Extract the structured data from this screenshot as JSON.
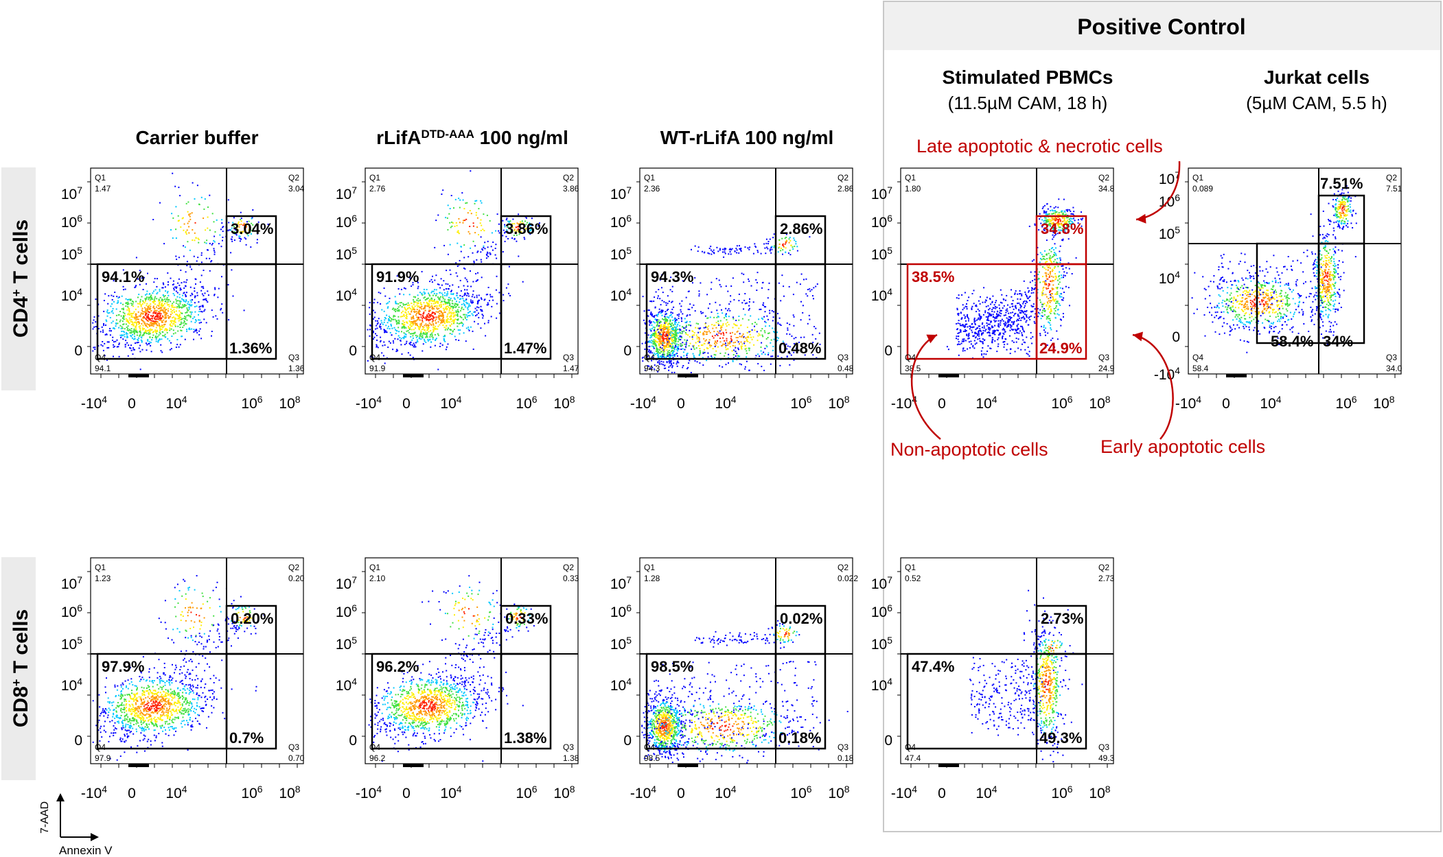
{
  "chart_data": {
    "type": "scatter",
    "description_axes": {
      "xlabel": "Annexin V",
      "ylabel": "7-AAD"
    },
    "positive_control": {
      "title": "Positive Control",
      "annotations": {
        "late": "Late apoptotic & necrotic cells",
        "non": "Non-apoptotic cells",
        "early": "Early apoptotic cells"
      }
    },
    "row_labels": [
      {
        "main": "CD4",
        "sup": "+",
        "rest": " T cells"
      },
      {
        "main": "CD8",
        "sup": "+",
        "rest": " T cells"
      }
    ],
    "x_ticks": [
      "-10",
      "0",
      "10",
      "10",
      "10"
    ],
    "x_tick_exps": [
      "4",
      "",
      "4",
      "6",
      "8"
    ],
    "y_ticks": [
      "10",
      "10",
      "10",
      "10",
      "0"
    ],
    "y_tick_exps": [
      "7",
      "6",
      "5",
      "4",
      ""
    ],
    "y_ticks_jurkat": [
      "10",
      "10",
      "10",
      "10",
      "0",
      "-10"
    ],
    "y_tick_exps_jurkat": [
      "7",
      "6",
      "5",
      "4",
      "",
      "4"
    ],
    "columns": [
      {
        "title": "Carrier buffer",
        "sup": "",
        "title2": "",
        "subtitle": ""
      },
      {
        "title": "rLifA",
        "sup": "DTD-AAA",
        "title2": " 100 ng/ml",
        "subtitle": ""
      },
      {
        "title": "WT-rLifA 100 ng/ml",
        "sup": "",
        "title2": "",
        "subtitle": ""
      },
      {
        "title": "Stimulated PBMCs",
        "sup": "",
        "title2": "",
        "subtitle": "(11.5µM CAM, 18 h)"
      },
      {
        "title": "Jurkat cells",
        "sup": "",
        "title2": "",
        "subtitle": "(5µM CAM, 5.5 h)"
      }
    ],
    "plots": [
      {
        "id": "cd4-carrier",
        "row": 0,
        "col": 0,
        "q1": "1.47",
        "q2": "3.04",
        "q3": "1.36",
        "q4": "94.1",
        "p_q2": "3.04%",
        "p_q3": "1.36%",
        "p_q4": "94.1%",
        "pattern": "blob"
      },
      {
        "id": "cd4-rlifa-aaa",
        "row": 0,
        "col": 1,
        "q1": "2.76",
        "q2": "3.86",
        "q3": "1.47",
        "q4": "91.9",
        "p_q2": "3.86%",
        "p_q3": "1.47%",
        "p_q4": "91.9%",
        "pattern": "blob"
      },
      {
        "id": "cd4-wt-rlifa",
        "row": 0,
        "col": 2,
        "q1": "2.36",
        "q2": "2.86",
        "q3": "0.48",
        "q4": "94.3",
        "p_q2": "2.86%",
        "p_q3": "0.48%",
        "p_q4": "94.3%",
        "pattern": "low"
      },
      {
        "id": "cd4-pbmc",
        "row": 0,
        "col": 3,
        "q1": "1.80",
        "q2": "34.8",
        "q3": "24.9",
        "q4": "38.5",
        "p_q2": "34.8%",
        "p_q3": "24.9%",
        "p_q4": "38.5%",
        "pattern": "apoptotic"
      },
      {
        "id": "cd4-jurkat",
        "row": 0,
        "col": 4,
        "q1": "0.089",
        "q2": "7.51",
        "q3": "34.0",
        "q4": "58.4",
        "p_q2": "7.51%",
        "p_q3": "34%",
        "p_q4": "58.4%",
        "pattern": "jurkat"
      },
      {
        "id": "cd8-carrier",
        "row": 1,
        "col": 0,
        "q1": "1.23",
        "q2": "0.20",
        "q3": "0.70",
        "q4": "97.9",
        "p_q2": "0.20%",
        "p_q3": "0.7%",
        "p_q4": "97.9%",
        "pattern": "blob"
      },
      {
        "id": "cd8-rlifa-aaa",
        "row": 1,
        "col": 1,
        "q1": "2.10",
        "q2": "0.33",
        "q3": "1.38",
        "q4": "96.2",
        "p_q2": "0.33%",
        "p_q3": "1.38%",
        "p_q4": "96.2%",
        "pattern": "blob"
      },
      {
        "id": "cd8-wt-rlifa",
        "row": 1,
        "col": 2,
        "q1": "1.28",
        "q2": "0.022",
        "q3": "0.18",
        "q4": "98.5",
        "p_q2": "0.02%",
        "p_q3": "0.18%",
        "p_q4": "98.5%",
        "pattern": "low"
      },
      {
        "id": "cd8-pbmc",
        "row": 1,
        "col": 3,
        "q1": "0.52",
        "q2": "2.73",
        "q3": "49.3",
        "q4": "47.4",
        "p_q2": "2.73%",
        "p_q3": "49.3%",
        "p_q4": "47.4%",
        "pattern": "cd8apop"
      }
    ],
    "quadrant_names": [
      "Q1",
      "Q2",
      "Q3",
      "Q4"
    ],
    "colors": {
      "accent": "#c00000",
      "dot_low": "#0000ff",
      "dot_mid": "#00c0ff",
      "dot_high": "#ff0000",
      "box": "#f0f0f0",
      "border": "#c8c8c8"
    }
  }
}
